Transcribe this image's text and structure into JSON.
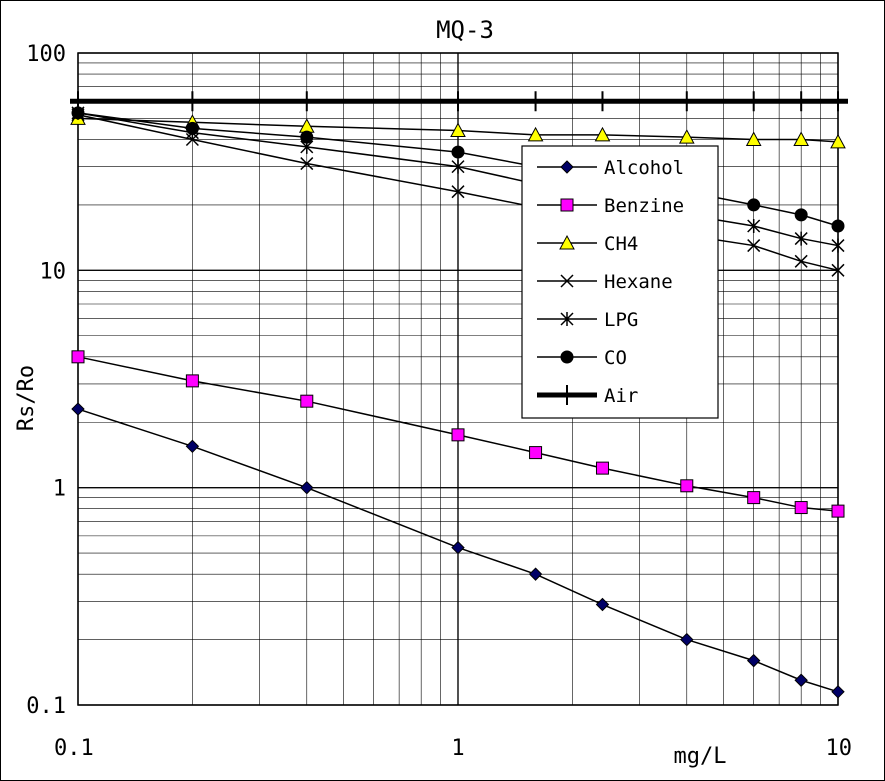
{
  "chart_data": {
    "type": "line",
    "title": "MQ-3",
    "xlabel": "mg/L",
    "ylabel": "Rs/Ro",
    "x_scale": "log",
    "y_scale": "log",
    "xlim": [
      0.1,
      10
    ],
    "ylim": [
      0.1,
      100
    ],
    "x_ticks": [
      "0.1",
      "1",
      "10"
    ],
    "y_ticks": [
      "100",
      "10",
      "1",
      "0.1"
    ],
    "grid": true,
    "legend_position": "right",
    "series": [
      {
        "name": "Alcohol",
        "color": "#000066",
        "marker": "diamond",
        "x": [
          0.1,
          0.2,
          0.4,
          1,
          1.6,
          2.4,
          4,
          6,
          8,
          10
        ],
        "y": [
          2.3,
          1.55,
          1.0,
          0.53,
          0.4,
          0.29,
          0.2,
          0.16,
          0.13,
          0.115
        ]
      },
      {
        "name": "Benzine",
        "color": "#ff00ff",
        "marker": "square",
        "x": [
          0.1,
          0.2,
          0.4,
          1,
          1.6,
          2.4,
          4,
          6,
          8,
          10
        ],
        "y": [
          4.0,
          3.1,
          2.5,
          1.75,
          1.45,
          1.23,
          1.02,
          0.9,
          0.81,
          0.78
        ]
      },
      {
        "name": "CH4",
        "color": "#ffff00",
        "marker": "triangle",
        "x": [
          0.1,
          0.2,
          0.4,
          1,
          1.6,
          2.4,
          4,
          6,
          8,
          10
        ],
        "y": [
          50,
          48,
          46,
          44,
          42,
          42,
          41,
          40,
          40,
          39
        ]
      },
      {
        "name": "Hexane",
        "color": "#000000",
        "marker": "x",
        "x": [
          0.1,
          0.2,
          0.4,
          1,
          1.6,
          2.4,
          4,
          6,
          8,
          10
        ],
        "y": [
          52,
          40,
          31,
          23,
          19.5,
          17,
          14.5,
          13,
          11,
          10
        ]
      },
      {
        "name": "LPG",
        "color": "#000000",
        "marker": "star",
        "x": [
          0.1,
          0.2,
          0.4,
          1,
          1.6,
          2.4,
          4,
          6,
          8,
          10
        ],
        "y": [
          53,
          43,
          37,
          30,
          25,
          21,
          18,
          16,
          14,
          13
        ]
      },
      {
        "name": "CO",
        "color": "#000000",
        "marker": "circle",
        "x": [
          0.1,
          0.2,
          0.4,
          1,
          1.6,
          2.4,
          4,
          6,
          8,
          10
        ],
        "y": [
          53,
          45,
          41,
          35,
          30,
          26,
          23,
          20,
          18,
          16
        ]
      },
      {
        "name": "Air",
        "color": "#000000",
        "marker": "plus",
        "x": [
          0.1,
          0.2,
          0.4,
          1,
          1.6,
          2.4,
          4,
          6,
          8,
          10
        ],
        "y": [
          60,
          60,
          60,
          60,
          60,
          60,
          60,
          60,
          60,
          60
        ]
      }
    ]
  }
}
